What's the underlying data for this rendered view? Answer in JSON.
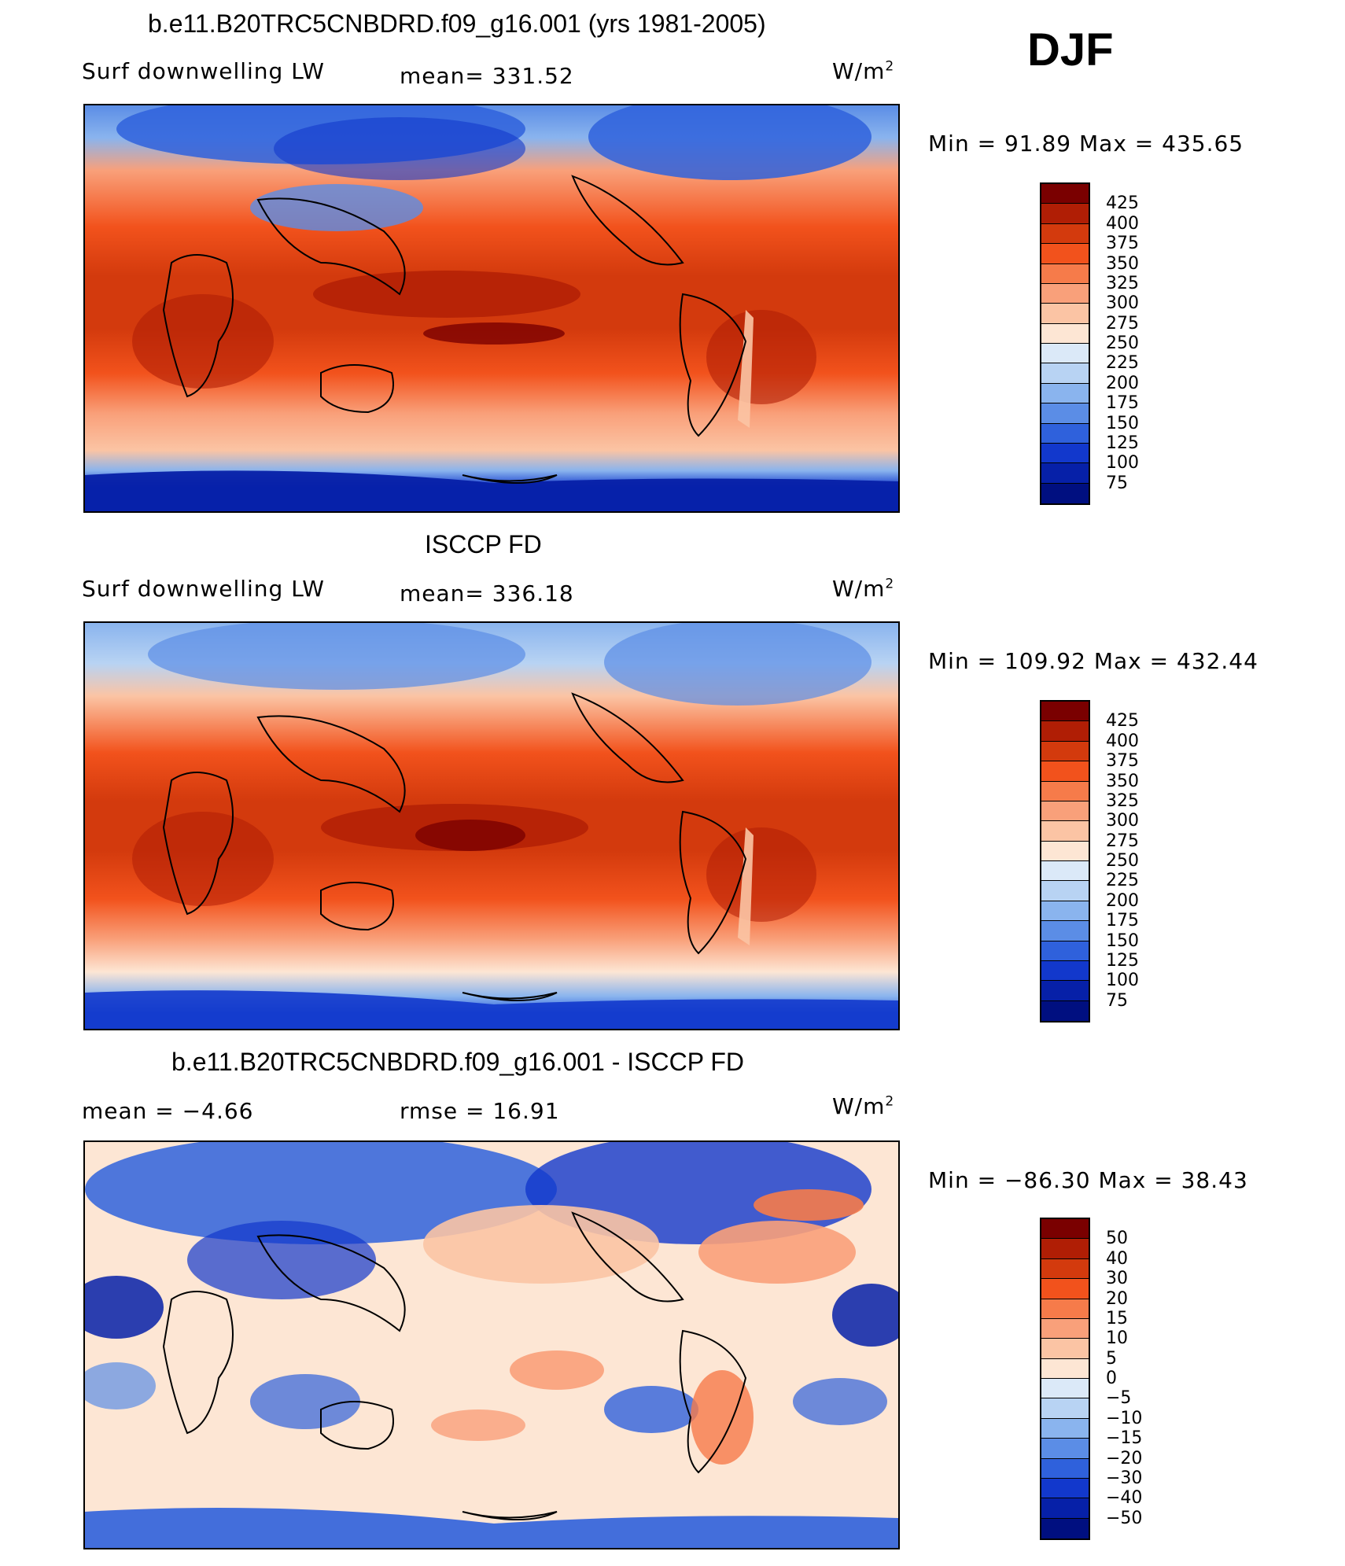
{
  "season": "DJF",
  "panels": [
    {
      "title": "b.e11.B20TRC5CNBDRD.f09_g16.001 (yrs 1981-2005)",
      "left_label": "Surf downwelling LW",
      "center_label": "mean= 331.52",
      "units": "W/m",
      "units_sup": "2",
      "minmax": "Min =  91.89 Max = 435.65",
      "colorbar_labels": [
        "425",
        "400",
        "375",
        "350",
        "325",
        "300",
        "275",
        "250",
        "225",
        "200",
        "175",
        "150",
        "125",
        "100",
        "75"
      ],
      "colorbar_colors": [
        "#7a0000",
        "#b01e05",
        "#d33a0d",
        "#f2521c",
        "#f67b4a",
        "#f9a07a",
        "#fbc4a4",
        "#fde6d4",
        "#dbe9f8",
        "#b8d3f3",
        "#8ab4ee",
        "#5b8de6",
        "#2f61dc",
        "#1238cc",
        "#0620a8",
        "#000f80"
      ]
    },
    {
      "title": "ISCCP FD",
      "left_label": "Surf downwelling LW",
      "center_label": "mean= 336.18",
      "units": "W/m",
      "units_sup": "2",
      "minmax": "Min = 109.92 Max = 432.44",
      "colorbar_labels": [
        "425",
        "400",
        "375",
        "350",
        "325",
        "300",
        "275",
        "250",
        "225",
        "200",
        "175",
        "150",
        "125",
        "100",
        "75"
      ],
      "colorbar_colors": [
        "#7a0000",
        "#b01e05",
        "#d33a0d",
        "#f2521c",
        "#f67b4a",
        "#f9a07a",
        "#fbc4a4",
        "#fde6d4",
        "#dbe9f8",
        "#b8d3f3",
        "#8ab4ee",
        "#5b8de6",
        "#2f61dc",
        "#1238cc",
        "#0620a8",
        "#000f80"
      ]
    },
    {
      "title": "b.e11.B20TRC5CNBDRD.f09_g16.001 - ISCCP FD",
      "left_label": "mean =   −4.66",
      "center_label": "rmse =   16.91",
      "units": "W/m",
      "units_sup": "2",
      "minmax": "Min = −86.30 Max =   38.43",
      "colorbar_labels": [
        "50",
        "40",
        "30",
        "20",
        "15",
        "10",
        "5",
        "0",
        "−5",
        "−10",
        "−15",
        "−20",
        "−30",
        "−40",
        "−50"
      ],
      "colorbar_colors": [
        "#7a0000",
        "#b01e05",
        "#d33a0d",
        "#f2521c",
        "#f67b4a",
        "#f9a07a",
        "#fbc4a4",
        "#fde6d4",
        "#dbe9f8",
        "#b8d3f3",
        "#8ab4ee",
        "#5b8de6",
        "#2f61dc",
        "#1238cc",
        "#0620a8",
        "#000f80"
      ]
    }
  ]
}
